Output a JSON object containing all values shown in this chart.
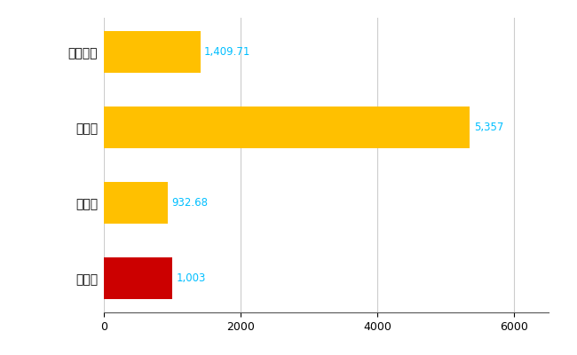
{
  "categories": [
    "能代市",
    "県平均",
    "県最大",
    "全国平均"
  ],
  "values": [
    1003,
    932.68,
    5357,
    1409.71
  ],
  "bar_colors": [
    "#CC0000",
    "#FFC000",
    "#FFC000",
    "#FFC000"
  ],
  "labels": [
    "1,003",
    "932.68",
    "5,357",
    "1,409.71"
  ],
  "xlim": [
    0,
    6500
  ],
  "xticks": [
    0,
    2000,
    4000,
    6000
  ],
  "bar_height": 0.55,
  "background_color": "#FFFFFF",
  "grid_color": "#CCCCCC",
  "label_color": "#00BFFF",
  "label_fontsize": 8.5,
  "tick_fontsize": 9,
  "ylabel_fontsize": 10
}
